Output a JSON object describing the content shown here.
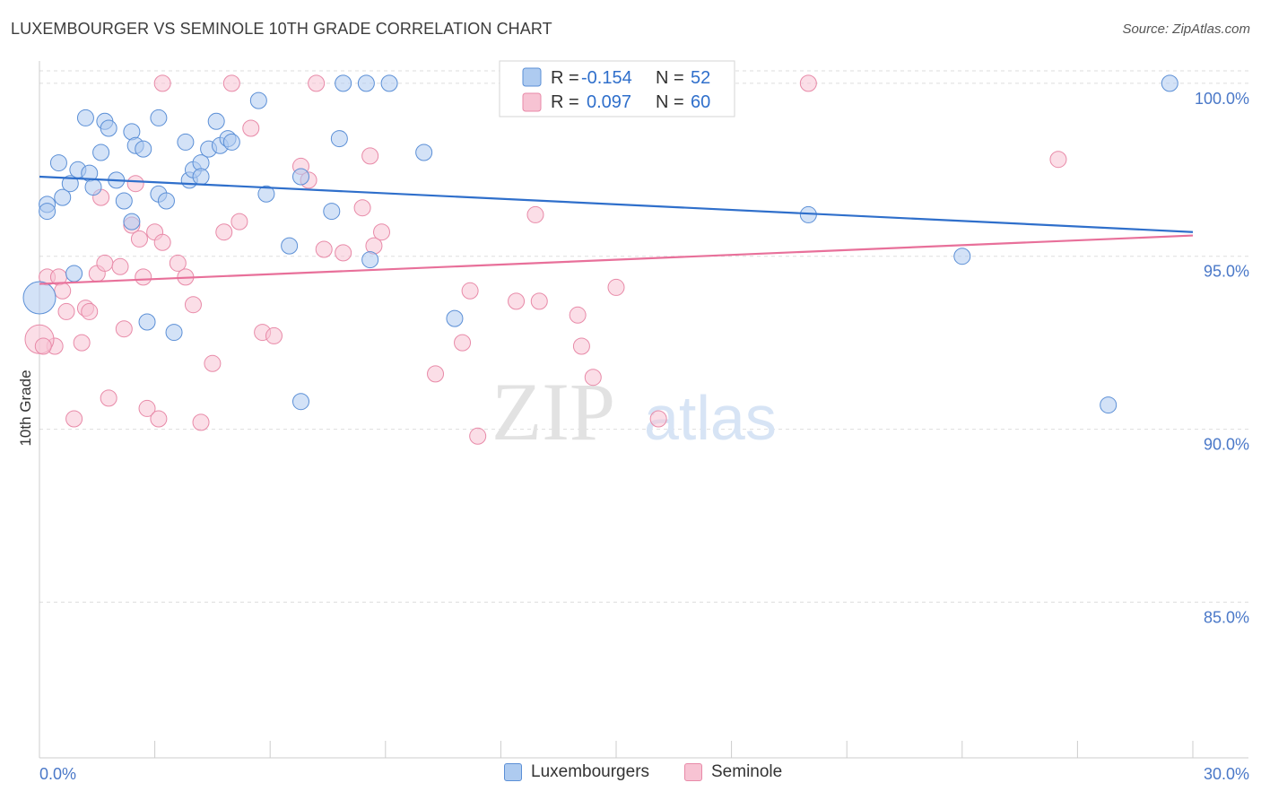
{
  "title": "LUXEMBOURGER VS SEMINOLE 10TH GRADE CORRELATION CHART",
  "source": "Source: ZipAtlas.com",
  "watermark": {
    "zip": "ZIP",
    "atlas": "atlas"
  },
  "legend": {
    "rows": [
      {
        "r_label": "R =",
        "r_value": "-0.154",
        "n_label": "N =",
        "n_value": "52"
      },
      {
        "r_label": "R =",
        "r_value": "0.097",
        "n_label": "N =",
        "n_value": "60"
      }
    ]
  },
  "bottom_legend": [
    "Luxembourgers",
    "Seminole"
  ],
  "colors": {
    "blue_fill": "#aecbf0",
    "blue_stroke": "#5b8fd6",
    "blue_line": "#2f6fcb",
    "pink_fill": "#f7c3d3",
    "pink_stroke": "#e88aa8",
    "pink_line": "#e8709a",
    "tick_text": "#4a78c8"
  },
  "chart_data": {
    "type": "scatter",
    "title": "LUXEMBOURGER VS SEMINOLE 10TH GRADE CORRELATION CHART",
    "xlabel": "",
    "ylabel": "10th Grade",
    "xlim": [
      0,
      30
    ],
    "ylim": [
      80.5,
      100.8
    ],
    "x_tick_labels": [
      "0.0%",
      "30.0%"
    ],
    "y_ticks": [
      85,
      90,
      95,
      100
    ],
    "y_tick_labels": [
      "85.0%",
      "90.0%",
      "95.0%",
      "100.0%"
    ],
    "grid": true,
    "series": [
      {
        "name": "Luxembourgers",
        "trend": {
          "x": [
            0,
            30
          ],
          "y": [
            97.3,
            95.7
          ]
        },
        "points": [
          [
            0.2,
            96.5
          ],
          [
            0.2,
            96.3
          ],
          [
            0.5,
            97.7
          ],
          [
            0.6,
            96.7
          ],
          [
            0.8,
            97.1
          ],
          [
            0.9,
            94.5
          ],
          [
            1.0,
            97.5
          ],
          [
            1.2,
            99.0
          ],
          [
            1.3,
            97.4
          ],
          [
            1.4,
            97.0
          ],
          [
            1.6,
            98.0
          ],
          [
            1.7,
            98.9
          ],
          [
            1.8,
            98.7
          ],
          [
            2.0,
            97.2
          ],
          [
            2.2,
            96.6
          ],
          [
            2.4,
            96.0
          ],
          [
            2.4,
            98.6
          ],
          [
            2.5,
            98.2
          ],
          [
            2.7,
            98.1
          ],
          [
            2.8,
            93.1
          ],
          [
            3.1,
            99.0
          ],
          [
            3.1,
            96.8
          ],
          [
            3.3,
            96.6
          ],
          [
            3.5,
            92.8
          ],
          [
            3.8,
            98.3
          ],
          [
            3.9,
            97.2
          ],
          [
            4.0,
            97.5
          ],
          [
            4.2,
            97.7
          ],
          [
            4.2,
            97.3
          ],
          [
            4.4,
            98.1
          ],
          [
            4.6,
            98.9
          ],
          [
            4.7,
            98.2
          ],
          [
            4.9,
            98.4
          ],
          [
            5.0,
            98.3
          ],
          [
            5.7,
            99.5
          ],
          [
            5.9,
            96.8
          ],
          [
            6.5,
            95.3
          ],
          [
            6.8,
            97.3
          ],
          [
            6.8,
            90.8
          ],
          [
            7.6,
            96.3
          ],
          [
            7.8,
            98.4
          ],
          [
            7.9,
            100.0
          ],
          [
            8.5,
            100.0
          ],
          [
            8.6,
            94.9
          ],
          [
            9.1,
            100.0
          ],
          [
            10.0,
            98.0
          ],
          [
            10.8,
            93.2
          ],
          [
            20.0,
            96.2
          ],
          [
            24.0,
            95.0
          ],
          [
            27.8,
            90.7
          ],
          [
            29.4,
            100.0
          ],
          [
            0.0,
            93.8
          ]
        ]
      },
      {
        "name": "Seminole",
        "trend": {
          "x": [
            0,
            30
          ],
          "y": [
            94.2,
            95.6
          ]
        },
        "points": [
          [
            0.2,
            94.4
          ],
          [
            0.4,
            92.4
          ],
          [
            0.5,
            94.4
          ],
          [
            0.6,
            94.0
          ],
          [
            0.7,
            93.4
          ],
          [
            0.9,
            90.3
          ],
          [
            1.1,
            92.5
          ],
          [
            1.2,
            93.5
          ],
          [
            1.3,
            93.4
          ],
          [
            1.5,
            94.5
          ],
          [
            1.6,
            96.7
          ],
          [
            1.7,
            94.8
          ],
          [
            1.8,
            90.9
          ],
          [
            2.1,
            94.7
          ],
          [
            2.2,
            92.9
          ],
          [
            2.4,
            95.9
          ],
          [
            2.5,
            97.1
          ],
          [
            2.6,
            95.5
          ],
          [
            2.7,
            94.4
          ],
          [
            2.8,
            90.6
          ],
          [
            3.0,
            95.7
          ],
          [
            3.1,
            90.3
          ],
          [
            3.2,
            95.4
          ],
          [
            3.2,
            100.0
          ],
          [
            3.6,
            94.8
          ],
          [
            3.8,
            94.4
          ],
          [
            4.0,
            93.6
          ],
          [
            4.2,
            90.2
          ],
          [
            4.5,
            91.9
          ],
          [
            4.8,
            95.7
          ],
          [
            5.0,
            100.0
          ],
          [
            5.2,
            96.0
          ],
          [
            5.5,
            98.7
          ],
          [
            5.8,
            92.8
          ],
          [
            6.1,
            92.7
          ],
          [
            6.8,
            97.6
          ],
          [
            7.0,
            97.2
          ],
          [
            7.2,
            100.0
          ],
          [
            7.4,
            95.2
          ],
          [
            7.9,
            95.1
          ],
          [
            8.4,
            96.4
          ],
          [
            8.6,
            97.9
          ],
          [
            8.7,
            95.3
          ],
          [
            8.9,
            95.7
          ],
          [
            10.3,
            91.6
          ],
          [
            11.0,
            92.5
          ],
          [
            11.2,
            94.0
          ],
          [
            11.4,
            89.8
          ],
          [
            12.4,
            93.7
          ],
          [
            12.9,
            96.2
          ],
          [
            13.0,
            93.7
          ],
          [
            14.0,
            93.3
          ],
          [
            14.1,
            92.4
          ],
          [
            14.4,
            91.5
          ],
          [
            15.0,
            94.1
          ],
          [
            16.1,
            90.3
          ],
          [
            20.0,
            100.0
          ],
          [
            26.5,
            97.8
          ],
          [
            0.0,
            92.6
          ],
          [
            0.1,
            92.4
          ]
        ]
      }
    ]
  }
}
